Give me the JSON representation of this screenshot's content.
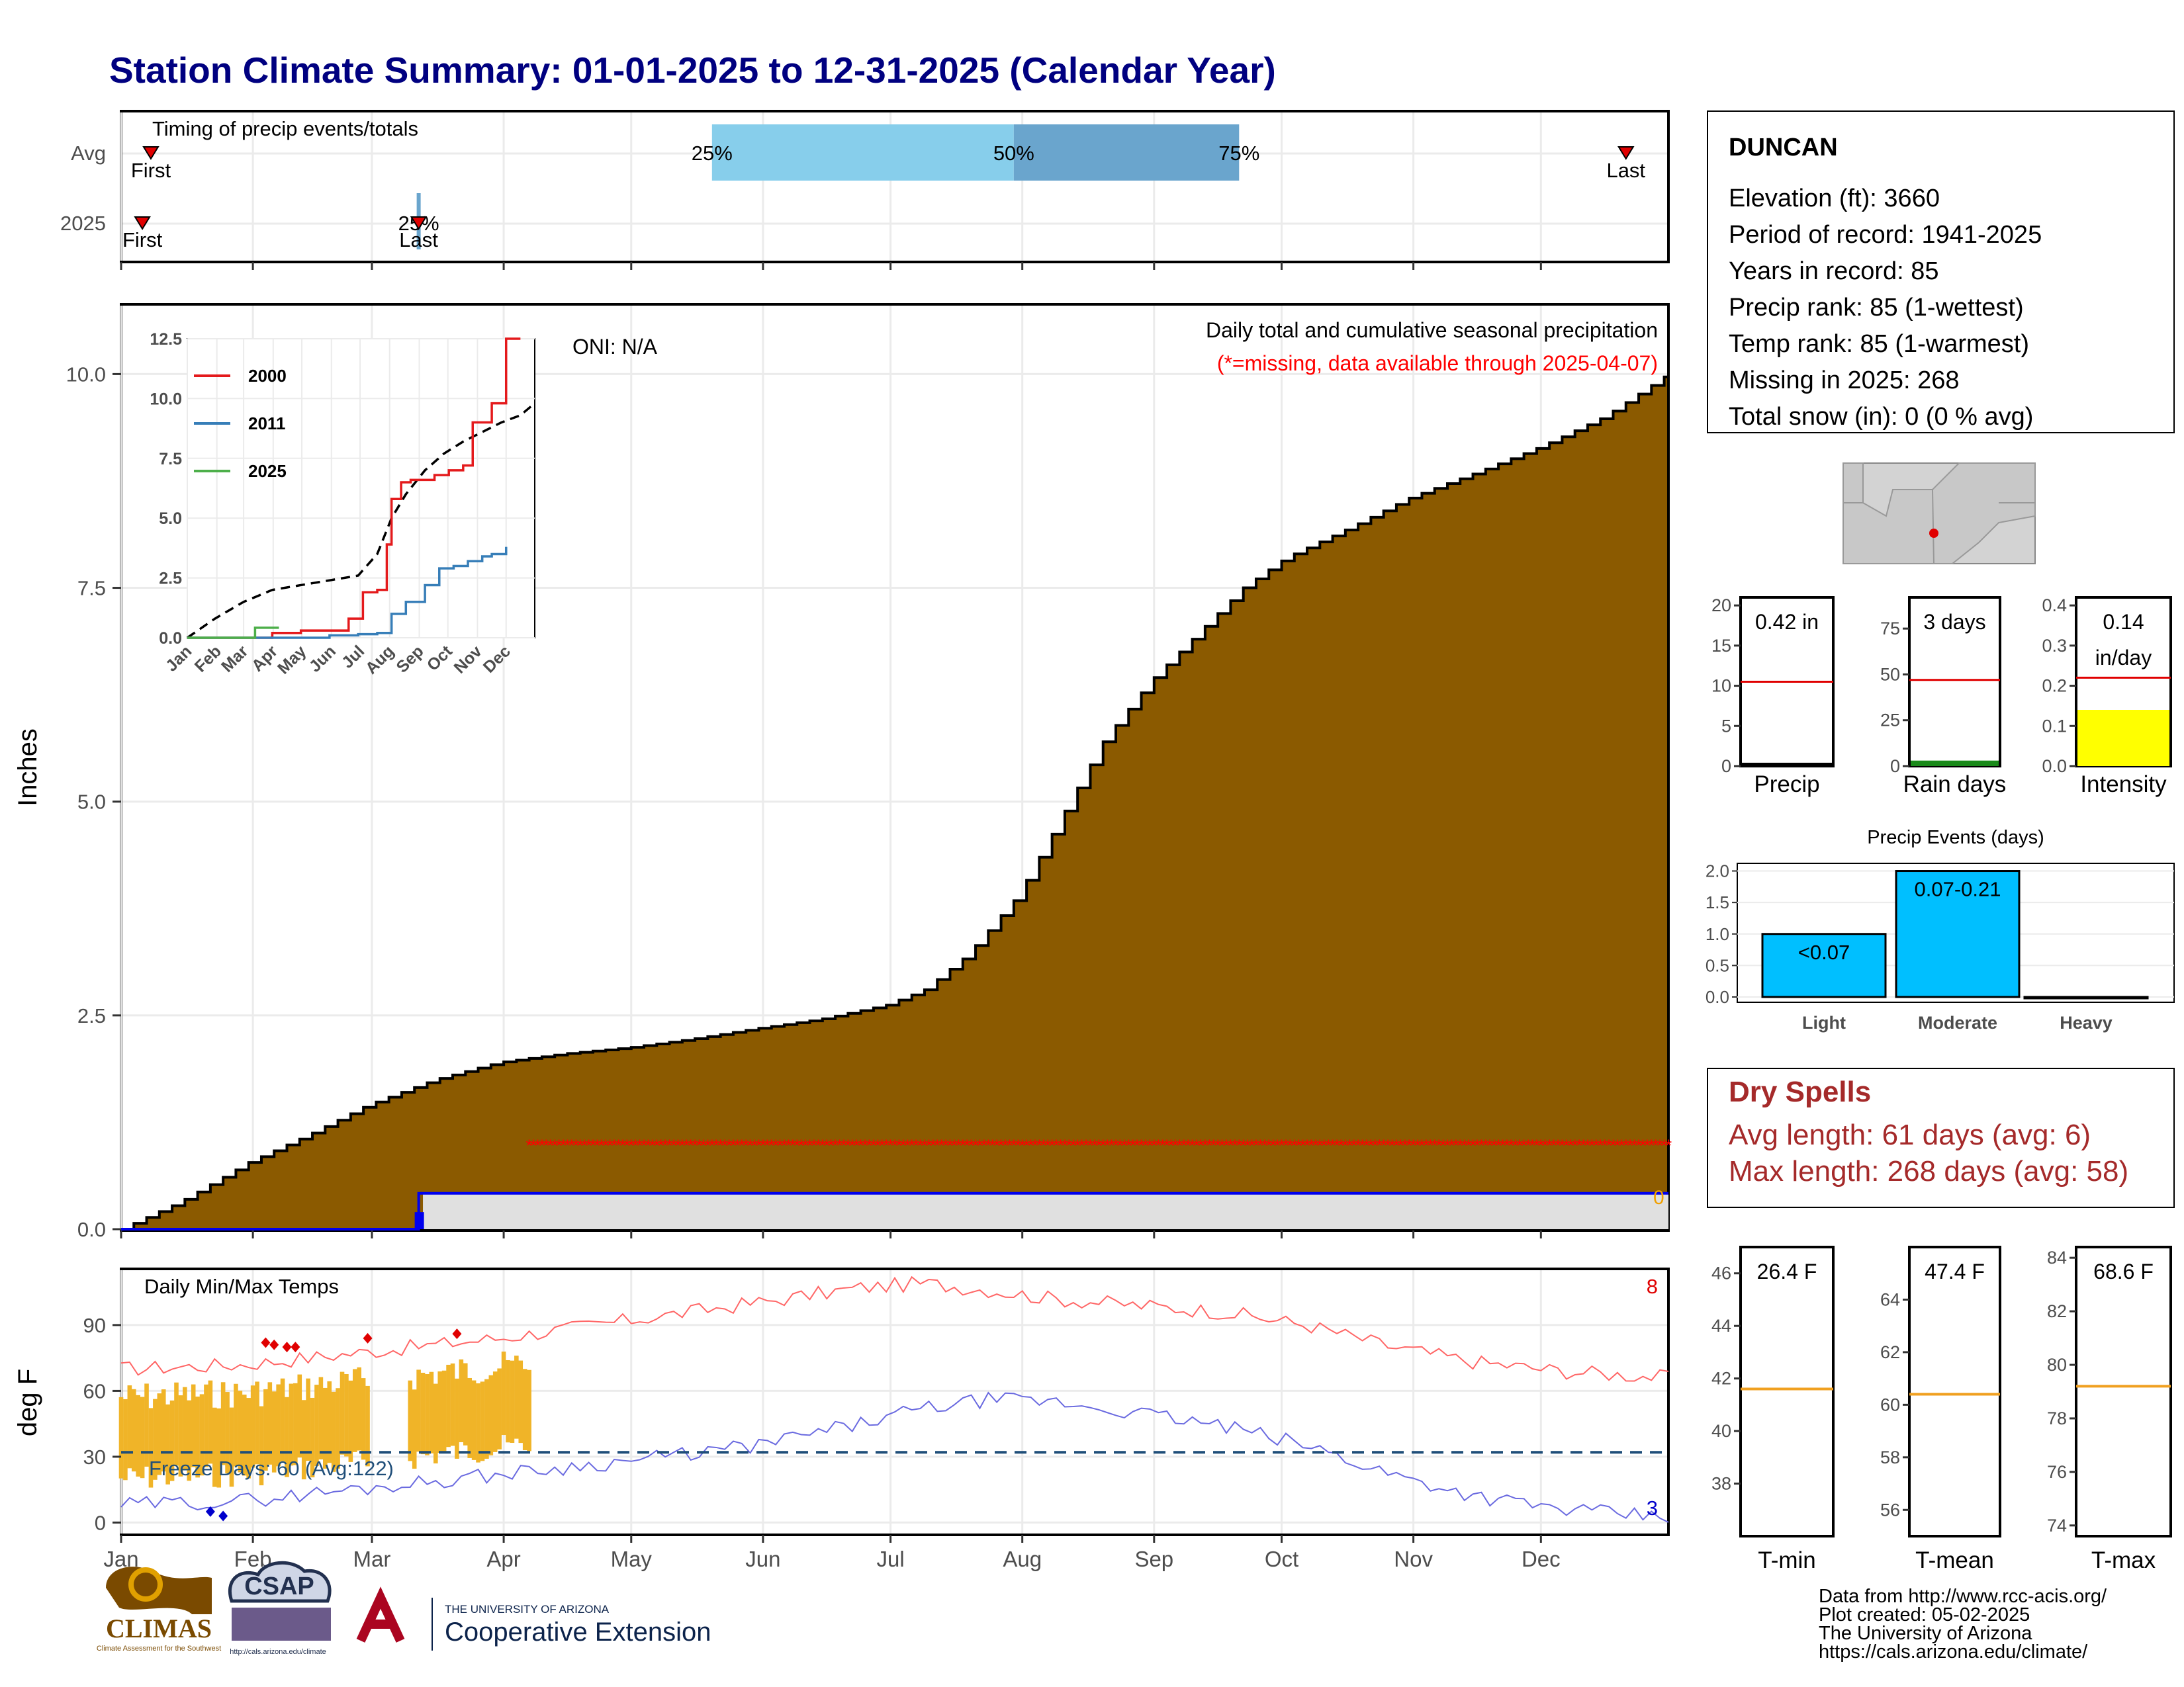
{
  "title": "Station Climate Summary: 01-01-2025 to 12-31-2025 (Calendar Year)",
  "colors": {
    "cumulative_fill": "#8b5a00",
    "avg_line": "#000000",
    "missing": "#ff0000",
    "daily_bar": "#0000ff",
    "maxtemp_avg": "#ff6666",
    "mintemp_avg": "#6a6ae0",
    "obs_temp": "#f0b428",
    "dry_spell": "#a52a2a",
    "title": "#000080"
  },
  "timing_panel": {
    "heading": "Timing of precip events/totals",
    "rows": [
      "Avg",
      "2025"
    ],
    "avg_markers": {
      "first": "First",
      "last": "Last",
      "p25": "25%",
      "p50": "50%",
      "p75": "75%"
    },
    "row2025_markers": {
      "first": "First",
      "last": "Last",
      "pct": "25%"
    },
    "avg_first_doy": 8,
    "avg_last_doy": 355,
    "avg_p25_doy": 140,
    "avg_p50_doy": 211,
    "avg_p75_doy": 264,
    "y2025_first_doy": 6,
    "y2025_last_doy": 71
  },
  "chart_data": [
    {
      "type": "area",
      "title": "Daily total and cumulative seasonal precipitation",
      "subtitle": "(*=missing, data available through 2025-04-07)",
      "annotation": "ONI: N/A",
      "ylabel": "Inches",
      "ylim": [
        0,
        10.8
      ],
      "yticks": [
        "0.0",
        "2.5",
        "5.0",
        "7.5",
        "10.0"
      ],
      "xticks": [
        "Jan",
        "Feb",
        "Mar",
        "Apr",
        "May",
        "Jun",
        "Jul",
        "Aug",
        "Sep",
        "Oct",
        "Nov",
        "Dec"
      ],
      "cumulative_avg": {
        "doy": [
          1,
          15,
          31,
          45,
          59,
          75,
          90,
          105,
          120,
          135,
          151,
          165,
          181,
          190,
          200,
          212,
          222,
          232,
          243,
          255,
          265,
          275,
          290,
          304,
          320,
          335,
          350,
          365
        ],
        "values": [
          0,
          0.32,
          0.78,
          1.1,
          1.45,
          1.75,
          1.95,
          2.05,
          2.12,
          2.22,
          2.35,
          2.45,
          2.62,
          2.8,
          3.2,
          3.9,
          4.8,
          5.7,
          6.4,
          7.0,
          7.5,
          7.85,
          8.2,
          8.55,
          8.85,
          9.15,
          9.5,
          10.0
        ]
      },
      "y2025_cumulative": {
        "doy": [
          1,
          71,
          72,
          97
        ],
        "values": [
          0,
          0,
          0.42,
          0.42
        ]
      },
      "missing_from_doy": 97,
      "end_label": "0"
    },
    {
      "type": "line",
      "title": "",
      "legend": [
        "2000",
        "2011",
        "2025"
      ],
      "series": [
        {
          "name": "2000",
          "color": "#e41a1c",
          "x": [
            1,
            60,
            90,
            120,
            150,
            170,
            185,
            200,
            210,
            215,
            225,
            235,
            260,
            275,
            290,
            300,
            320,
            335,
            350
          ],
          "y": [
            0,
            0,
            0.2,
            0.3,
            0.3,
            0.8,
            1.9,
            2.0,
            3.9,
            5.8,
            6.5,
            6.6,
            6.8,
            7.0,
            7.2,
            9.0,
            9.8,
            12.5,
            12.5
          ]
        },
        {
          "name": "2011",
          "color": "#377eb8",
          "x": [
            1,
            120,
            150,
            180,
            200,
            215,
            230,
            250,
            265,
            280,
            295,
            310,
            320,
            335
          ],
          "y": [
            0,
            0,
            0.1,
            0.15,
            0.2,
            1.0,
            1.5,
            2.2,
            2.9,
            3.0,
            3.2,
            3.4,
            3.5,
            3.8
          ]
        },
        {
          "name": "2025",
          "color": "#4daf4a",
          "x": [
            1,
            71,
            72,
            97
          ],
          "y": [
            0,
            0,
            0.42,
            0.42
          ]
        }
      ],
      "avg": {
        "x": [
          1,
          30,
          60,
          90,
          120,
          150,
          180,
          200,
          215,
          230,
          250,
          270,
          290,
          310,
          330,
          350,
          365
        ],
        "y": [
          0,
          0.8,
          1.5,
          2.0,
          2.2,
          2.4,
          2.6,
          3.5,
          5.0,
          6.0,
          7.0,
          7.7,
          8.2,
          8.6,
          9.0,
          9.3,
          9.8
        ]
      },
      "ylim": [
        0,
        12.5
      ],
      "yticks": [
        "0.0",
        "2.5",
        "5.0",
        "7.5",
        "10.0",
        "12.5"
      ],
      "xticks": [
        "Jan",
        "Feb",
        "Mar",
        "Apr",
        "May",
        "Jun",
        "Jul",
        "Aug",
        "Sep",
        "Oct",
        "Nov",
        "Dec"
      ]
    },
    {
      "type": "line",
      "title": "Daily Min/Max Temps",
      "ylabel": "deg F",
      "ylim": [
        -5,
        115
      ],
      "yticks": [
        "0",
        "30",
        "60",
        "90"
      ],
      "freeze_text": "Freeze Days: 60 (Avg:122)",
      "freeze_line": 32,
      "max_avg_x": [
        1,
        30,
        60,
        90,
        120,
        150,
        175,
        190,
        205,
        220,
        240,
        260,
        280,
        300,
        320,
        340,
        365
      ],
      "max_avg_y": [
        70,
        72,
        78,
        84,
        92,
        100,
        107,
        109,
        106,
        102,
        99,
        96,
        90,
        80,
        73,
        69,
        66
      ],
      "min_avg_x": [
        1,
        30,
        60,
        90,
        120,
        150,
        175,
        190,
        205,
        220,
        240,
        260,
        280,
        300,
        320,
        340,
        365
      ],
      "min_avg_y": [
        8,
        10,
        16,
        22,
        28,
        35,
        45,
        52,
        56,
        55,
        50,
        44,
        35,
        22,
        12,
        6,
        2
      ],
      "observed_through_doy": 97,
      "record_max_count": "8",
      "record_min_count": "3",
      "xticks": [
        "Jan",
        "Feb",
        "Mar",
        "Apr",
        "May",
        "Jun",
        "Jul",
        "Aug",
        "Sep",
        "Oct",
        "Nov",
        "Dec"
      ]
    },
    {
      "type": "bar",
      "categories": [
        "Precip",
        "Rain days",
        "Intensity"
      ],
      "values": [
        0.42,
        3,
        0.14
      ],
      "labels": [
        "0.42 in",
        "3 days",
        "0.14"
      ],
      "intensity_unit": "in/day",
      "averages": [
        10.5,
        47,
        0.22
      ],
      "ylims": [
        [
          0,
          21
        ],
        [
          0,
          92
        ],
        [
          0,
          0.42
        ]
      ],
      "yticks": [
        [
          "0",
          "5",
          "10",
          "15",
          "20"
        ],
        [
          "0",
          "25",
          "50",
          "75"
        ],
        [
          "0.0",
          "0.1",
          "0.2",
          "0.3",
          "0.4"
        ]
      ]
    },
    {
      "type": "bar",
      "title": "Precip Events (days)",
      "categories": [
        "Light",
        "Moderate",
        "Heavy"
      ],
      "values": [
        1,
        2,
        0
      ],
      "labels": [
        "<0.07",
        "0.07-0.21",
        ""
      ],
      "ylim": [
        0,
        2.1
      ],
      "yticks": [
        "0.0",
        "0.5",
        "1.0",
        "1.5",
        "2.0"
      ]
    },
    {
      "type": "bar",
      "categories": [
        "T-min",
        "T-mean",
        "T-max"
      ],
      "labels": [
        "26.4 F",
        "47.4 F",
        "68.6 F"
      ],
      "averages": [
        41.6,
        60.4,
        79.2
      ],
      "ylims": [
        [
          36,
          47
        ],
        [
          55,
          66
        ],
        [
          73.6,
          84.4
        ]
      ],
      "yticks": [
        [
          "38",
          "40",
          "42",
          "44",
          "46"
        ],
        [
          "56",
          "58",
          "60",
          "62",
          "64"
        ],
        [
          "74",
          "76",
          "78",
          "80",
          "82",
          "84"
        ]
      ]
    }
  ],
  "station": {
    "name": "DUNCAN",
    "lines": [
      "Elevation (ft): 3660",
      "Period of record: 1941-2025",
      "Years in record: 85",
      "Precip rank: 85 (1-wettest)",
      "Temp rank: 85 (1-warmest)",
      "Missing in 2025: 268",
      "Total snow (in): 0 (0 % avg)"
    ]
  },
  "dry_spells": {
    "title": "Dry Spells",
    "avg": "Avg length: 61 days (avg: 6)",
    "max": "Max length: 268 days (avg: 58)"
  },
  "footer": {
    "lines": [
      "Data from http://www.rcc-acis.org/",
      "Plot created: 05-02-2025",
      "The University of Arizona",
      "https://cals.arizona.edu/climate/"
    ],
    "logos": {
      "climas": "CLIMAS",
      "climas_sub": "Climate Assessment for the Southwest",
      "csap": "CSAP",
      "csap_url": "http://cals.arizona.edu/climate",
      "ua_top": "THE UNIVERSITY OF ARIZONA",
      "ua_main": "Cooperative Extension"
    }
  }
}
